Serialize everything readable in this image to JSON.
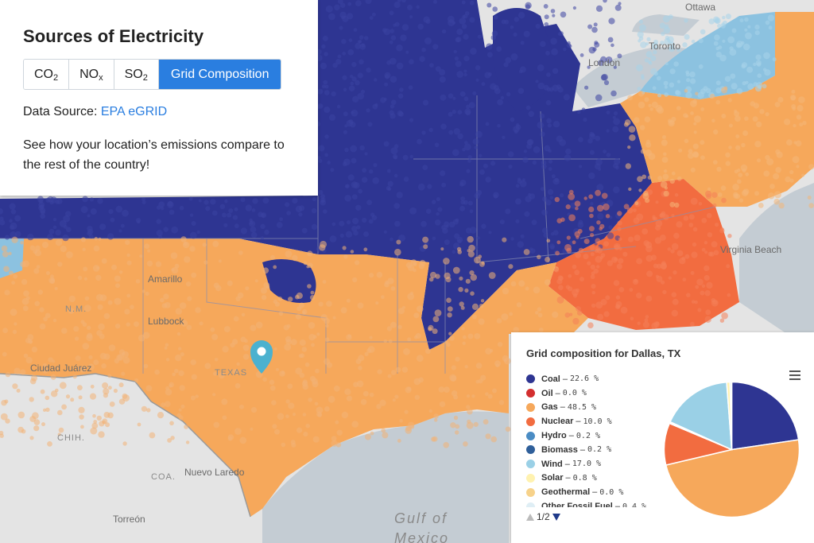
{
  "panel": {
    "title": "Sources of Electricity",
    "buttons": [
      {
        "label": "CO",
        "sub": "2"
      },
      {
        "label": "NO",
        "sub": "x"
      },
      {
        "label": "SO",
        "sub": "2"
      },
      {
        "label": "Grid Composition",
        "sub": ""
      }
    ],
    "active_button": "Grid Composition",
    "source_prefix": "Data Source: ",
    "source_link": "EPA eGRID",
    "description": "See how your location’s emissions compare to the rest of the country!"
  },
  "map_labels": {
    "ottawa": "Ottawa",
    "toronto": "Toronto",
    "london": "London",
    "virginia_beach": "Virginia Beach",
    "amarillo": "Amarillo",
    "lubbock": "Lubbock",
    "ciudad_juarez": "Ciudad Juárez",
    "nm": "N.M.",
    "texas": "TEXAS",
    "chih": "CHIH.",
    "coa": "COA.",
    "nuevo_laredo": "Nuevo Laredo",
    "torreon": "Torreón",
    "gulf": "Gulf of",
    "mexico": "Mexico"
  },
  "colors": {
    "coal": "#2e3592",
    "gas": "#f6a85b",
    "nuclear": "#f26c40",
    "wind": "#9ad0e6",
    "hydro": "#5aa3d1",
    "marker": "#4bb1cf",
    "accent": "#2a7ee0"
  },
  "chart": {
    "title": "Grid composition for Dallas, TX",
    "pager": "1/2",
    "menu_icon": "hamburger-menu-icon"
  },
  "chart_data": {
    "type": "pie",
    "title": "Grid composition for Dallas, TX",
    "slices": [
      {
        "name": "Coal",
        "value": 22.6,
        "label": "22.6 %",
        "color": "#2e3592"
      },
      {
        "name": "Oil",
        "value": 0.0,
        "label": "0.0 %",
        "color": "#d32f2f"
      },
      {
        "name": "Gas",
        "value": 48.5,
        "label": "48.5 %",
        "color": "#f6a85b"
      },
      {
        "name": "Nuclear",
        "value": 10.0,
        "label": "10.0 %",
        "color": "#f26c40"
      },
      {
        "name": "Hydro",
        "value": 0.2,
        "label": "0.2 %",
        "color": "#4a8cc4"
      },
      {
        "name": "Biomass",
        "value": 0.2,
        "label": "0.2 %",
        "color": "#2f5f9a"
      },
      {
        "name": "Wind",
        "value": 17.0,
        "label": "17.0 %",
        "color": "#9ad0e6"
      },
      {
        "name": "Solar",
        "value": 0.8,
        "label": "0.8 %",
        "color": "#fff2b0"
      },
      {
        "name": "Geothermal",
        "value": 0.0,
        "label": "0.0 %",
        "color": "#f7d28a"
      },
      {
        "name": "Other Fossil Fuel",
        "value": 0.4,
        "label": "0.4 %",
        "color": "#dfeef5"
      }
    ]
  }
}
